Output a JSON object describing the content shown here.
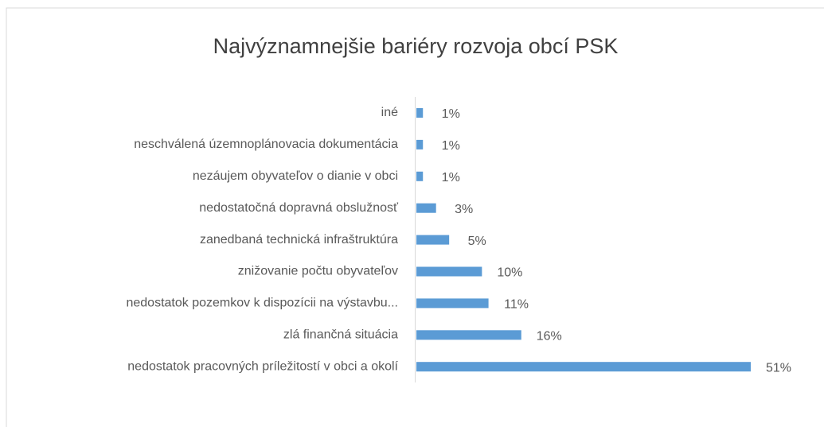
{
  "chart_data": {
    "type": "bar",
    "orientation": "horizontal",
    "title": "Najvýznamnejšie bariéry rozvoja obcí PSK",
    "categories": [
      "iné",
      "neschválená územnoplánovacia dokumentácia",
      "nezáujem obyvateľov o dianie v obci",
      "nedostatočná dopravná obslužnosť",
      "zanedbaná technická infraštruktúra",
      "znižovanie počtu obyvateľov",
      "nedostatok pozemkov k dispozícii na výstavbu...",
      "zlá finančná situácia",
      "nedostatok pracovných príležitostí v obci a okolí"
    ],
    "values": [
      1,
      1,
      1,
      3,
      5,
      10,
      11,
      16,
      51
    ],
    "value_labels": [
      "1%",
      "1%",
      "1%",
      "3%",
      "5%",
      "10%",
      "11%",
      "16%",
      "51%"
    ],
    "color": "#5b9bd5"
  }
}
